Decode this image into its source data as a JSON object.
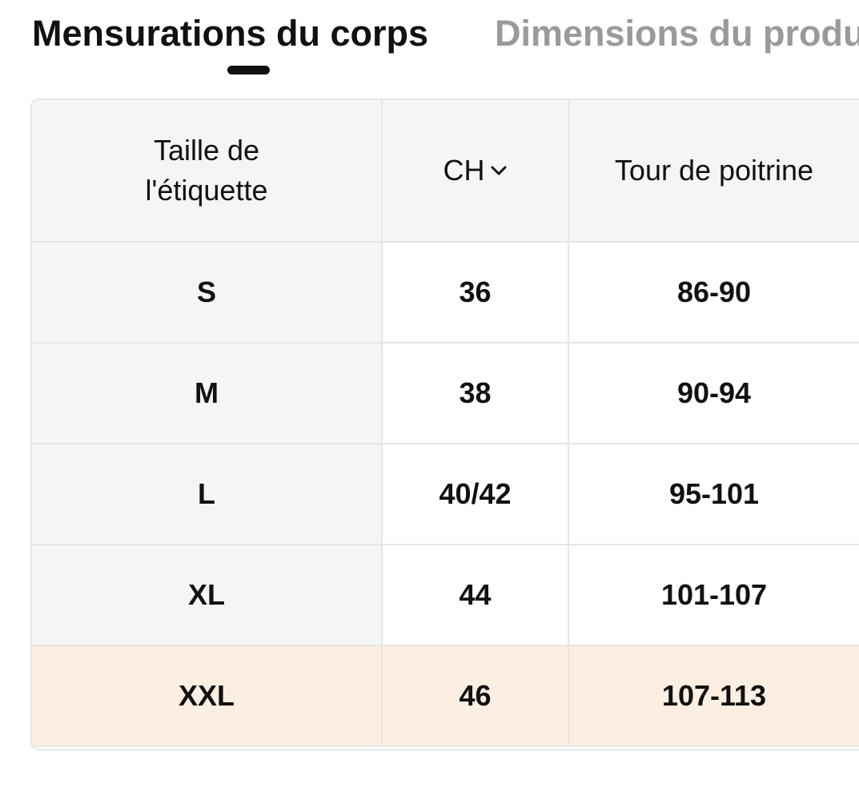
{
  "tabs": [
    {
      "label": "Mensurations du corps",
      "active": true
    },
    {
      "label": "Dimensions du produ",
      "active": false
    }
  ],
  "table": {
    "headers": {
      "label": "Taille de l'étiquette",
      "ch": "CH",
      "chest": "Tour de poitrine"
    },
    "rows": [
      {
        "label": "S",
        "ch": "36",
        "chest": "86-90"
      },
      {
        "label": "M",
        "ch": "38",
        "chest": "90-94"
      },
      {
        "label": "L",
        "ch": "40/42",
        "chest": "95-101"
      },
      {
        "label": "XL",
        "ch": "44",
        "chest": "101-107"
      },
      {
        "label": "XXL",
        "ch": "46",
        "chest": "107-113"
      }
    ],
    "highlighted_row": "XXL"
  },
  "icons": {
    "ch_dropdown": "chevron-down-icon"
  },
  "colors": {
    "text": "#111111",
    "inactive_tab": "#9a9a9a",
    "header_bg": "#f5f5f5",
    "highlight_bg": "#fcefe2",
    "border": "#e6e6e6"
  }
}
